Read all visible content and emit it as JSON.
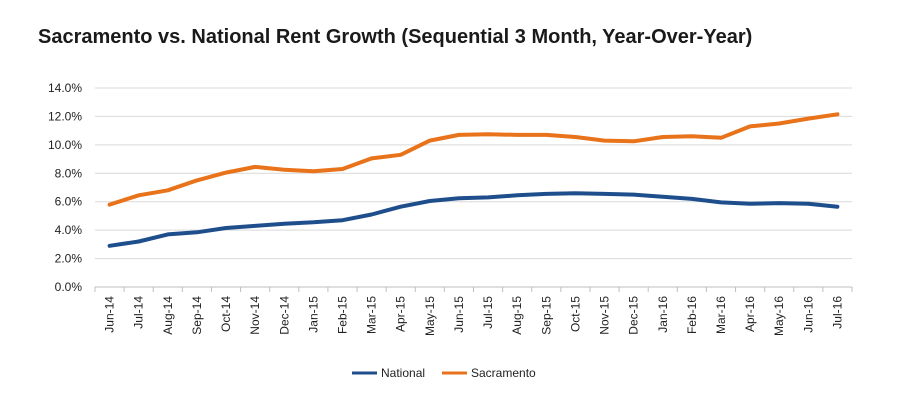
{
  "chart_data": {
    "type": "line",
    "title": "Sacramento vs. National Rent Growth (Sequential 3 Month, Year-Over-Year)",
    "xlabel": "",
    "ylabel": "",
    "categories": [
      "Jun-14",
      "Jul-14",
      "Aug-14",
      "Sep-14",
      "Oct-14",
      "Nov-14",
      "Dec-14",
      "Jan-15",
      "Feb-15",
      "Mar-15",
      "Apr-15",
      "May-15",
      "Jun-15",
      "Jul-15",
      "Aug-15",
      "Sep-15",
      "Oct-15",
      "Nov-15",
      "Dec-15",
      "Jan-16",
      "Feb-16",
      "Mar-16",
      "Apr-16",
      "May-16",
      "Jun-16",
      "Jul-16"
    ],
    "ylim": [
      0,
      14
    ],
    "yticks": [
      0,
      2,
      4,
      6,
      8,
      10,
      12,
      14
    ],
    "ytick_labels": [
      "0.0%",
      "2.0%",
      "4.0%",
      "6.0%",
      "8.0%",
      "10.0%",
      "12.0%",
      "14.0%"
    ],
    "grid": true,
    "legend_position": "bottom",
    "series": [
      {
        "name": "National",
        "color": "#1f4e8c",
        "values": [
          2.9,
          3.2,
          3.7,
          3.85,
          4.15,
          4.3,
          4.45,
          4.55,
          4.7,
          5.1,
          5.65,
          6.05,
          6.25,
          6.3,
          6.45,
          6.55,
          6.6,
          6.55,
          6.5,
          6.35,
          6.2,
          5.95,
          5.85,
          5.9,
          5.85,
          5.65
        ]
      },
      {
        "name": "Sacramento",
        "color": "#e8731a",
        "values": [
          5.8,
          6.45,
          6.8,
          7.5,
          8.05,
          8.45,
          8.25,
          8.15,
          8.3,
          9.05,
          9.3,
          10.3,
          10.7,
          10.75,
          10.7,
          10.7,
          10.55,
          10.3,
          10.25,
          10.55,
          10.6,
          10.5,
          11.3,
          11.5,
          11.85,
          12.15
        ]
      }
    ]
  }
}
